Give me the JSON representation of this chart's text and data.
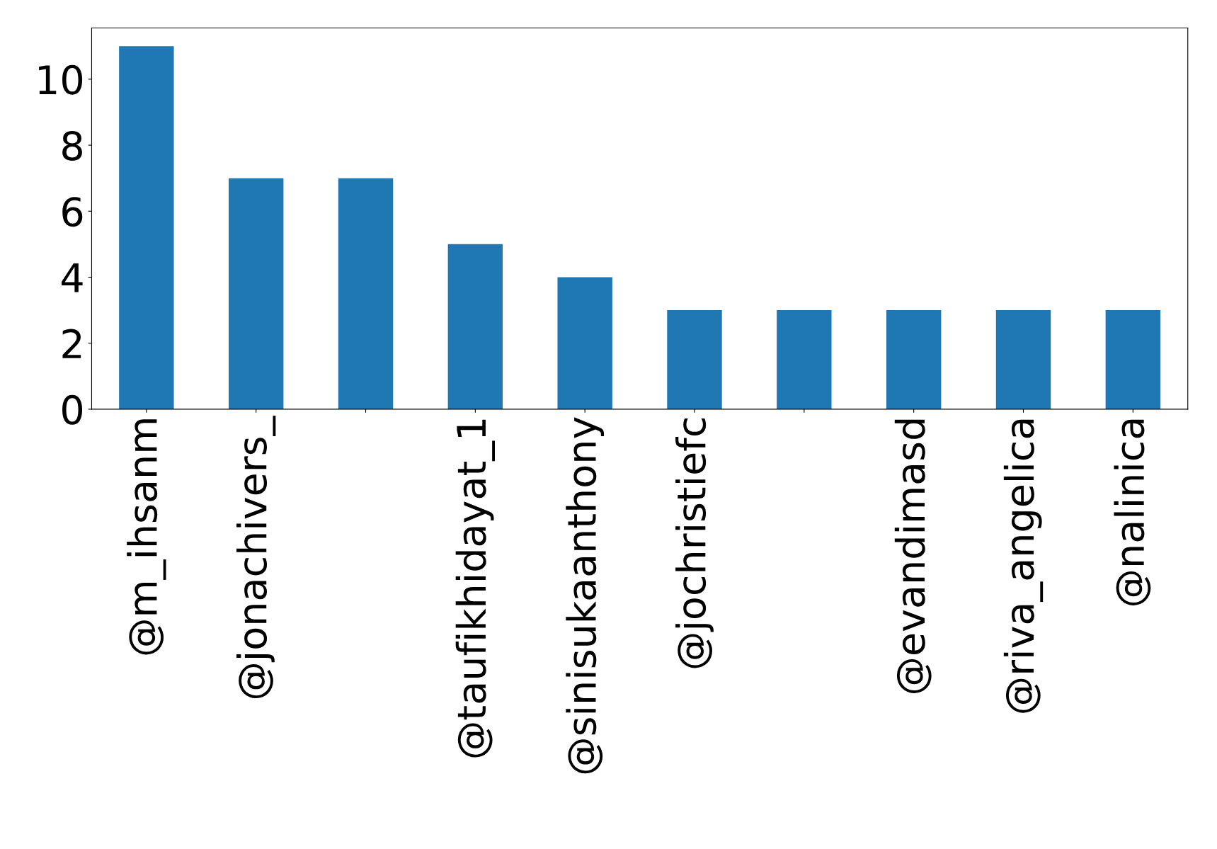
{
  "chart_data": {
    "type": "bar",
    "categories": [
      "@m_ihsanm",
      "@jonachivers_",
      null,
      "@taufikhidayat_1",
      "@sinisukaanthony",
      "@jochristiefc",
      null,
      "@evandimasd",
      "@riva_angelica",
      "@nalinica"
    ],
    "values": [
      11,
      7,
      7,
      5,
      4,
      3,
      3,
      3,
      3,
      3
    ],
    "color": "#1f77b4",
    "ylim": [
      0,
      11.55
    ],
    "yticks": [
      0,
      2,
      4,
      6,
      8,
      10
    ],
    "grid": false,
    "legend": false
  }
}
